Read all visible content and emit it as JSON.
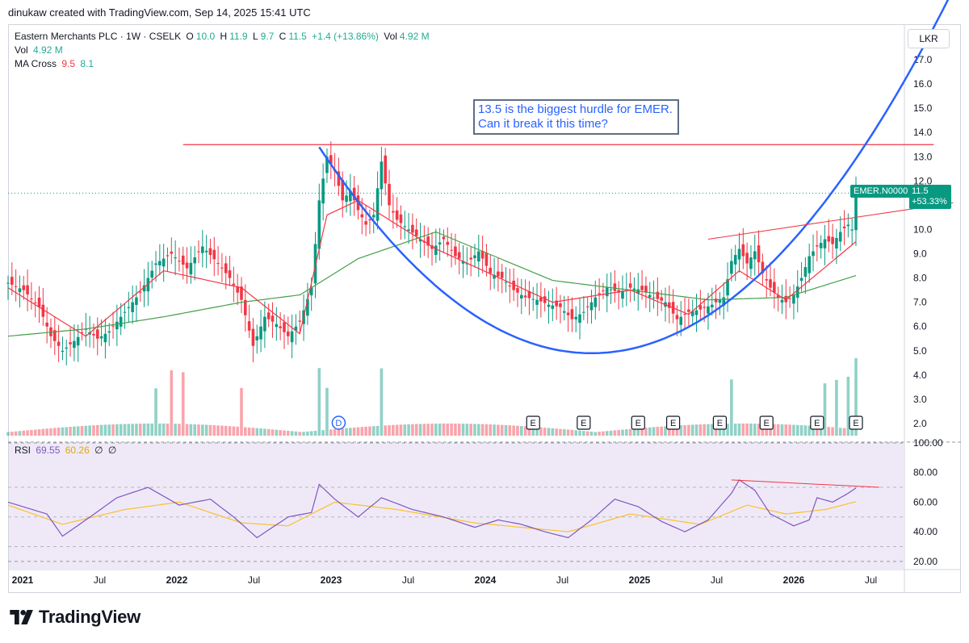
{
  "header": {
    "credit": "dinukaw created with TradingView.com, Sep 14, 2025 15:41 UTC"
  },
  "legend": {
    "symbol": "Eastern Merchants PLC · 1W · CSELK",
    "o_label": "O",
    "o_value": "10.0",
    "h_label": "H",
    "h_value": "11.9",
    "l_label": "L",
    "l_value": "9.7",
    "c_label": "C",
    "c_value": "11.5",
    "change": "+1.4 (+13.86%)",
    "vol_label": "Vol",
    "vol_value": "4.92 M",
    "vol_row_label": "Vol",
    "vol_row_value": "4.92 M",
    "ma_label": "MA Cross",
    "ma_fast": "9.5",
    "ma_slow": "8.1",
    "rsi_label": "RSI",
    "rsi_value": "69.55",
    "rsi_ma": "60.26",
    "rsi_extra1": "∅",
    "rsi_extra2": "∅"
  },
  "currency": "LKR",
  "annotation": {
    "line1": "13.5 is the biggest hurdle for EMER.",
    "line2": "Can it break it this time?"
  },
  "price_tag": {
    "symbol": "EMER.N0000",
    "price": "11.5",
    "change": "+53.33%"
  },
  "brand": {
    "name": "TradingView"
  },
  "colors": {
    "up": "#089981",
    "down": "#f23645",
    "ma_fast": "#f23645",
    "ma_slow": "#43a047",
    "cup": "#2962ff",
    "resistance": "#f23645",
    "rsi": "#7e57c2",
    "rsi_ma": "#fbc02d",
    "rsi_bg": "#ede7f6"
  },
  "chart_data": {
    "type": "candlestick",
    "title": "Eastern Merchants PLC · 1W · CSELK",
    "currency": "LKR",
    "price_axis": {
      "ticks": [
        "17.0",
        "16.0",
        "15.0",
        "14.0",
        "13.0",
        "12.0",
        "11.0",
        "10.0",
        "9.0",
        "8.0",
        "7.0",
        "6.0",
        "5.0",
        "4.0",
        "3.0",
        "2.0"
      ],
      "min": 1.5,
      "max": 17.6
    },
    "time_axis": {
      "labels": [
        "2021",
        "Jul",
        "2022",
        "Jul",
        "2023",
        "Jul",
        "2024",
        "Jul",
        "2025",
        "Jul",
        "2026",
        "Jul"
      ]
    },
    "rsi_axis": {
      "ticks": [
        "100.00",
        "80.00",
        "60.00",
        "40.00",
        "20.00"
      ],
      "min": 15,
      "max": 100
    },
    "last_close": 11.5,
    "resistance_level": 13.5,
    "price_path": [
      [
        0,
        7.8
      ],
      [
        4,
        7.5
      ],
      [
        8,
        6.8
      ],
      [
        11,
        5.6
      ],
      [
        14,
        5.0
      ],
      [
        17,
        5.4
      ],
      [
        20,
        5.9
      ],
      [
        23,
        5.5
      ],
      [
        26,
        5.8
      ],
      [
        30,
        6.6
      ],
      [
        34,
        7.4
      ],
      [
        38,
        8.6
      ],
      [
        42,
        9.0
      ],
      [
        46,
        8.4
      ],
      [
        50,
        9.3
      ],
      [
        54,
        8.6
      ],
      [
        57,
        8.0
      ],
      [
        60,
        7.1
      ],
      [
        63,
        5.2
      ],
      [
        66,
        6.4
      ],
      [
        69,
        6.1
      ],
      [
        72,
        5.6
      ],
      [
        75,
        6.2
      ],
      [
        78,
        7.6
      ],
      [
        80,
        11.2
      ],
      [
        82,
        13.0
      ],
      [
        84,
        12.4
      ],
      [
        86,
        11.2
      ],
      [
        88,
        11.6
      ],
      [
        90,
        10.8
      ],
      [
        92,
        10.2
      ],
      [
        94,
        10.6
      ],
      [
        96,
        12.8
      ],
      [
        98,
        11.0
      ],
      [
        100,
        10.4
      ],
      [
        103,
        10.0
      ],
      [
        106,
        9.6
      ],
      [
        109,
        9.2
      ],
      [
        112,
        9.6
      ],
      [
        115,
        8.9
      ],
      [
        118,
        8.6
      ],
      [
        121,
        9.1
      ],
      [
        124,
        8.2
      ],
      [
        127,
        8.0
      ],
      [
        130,
        7.5
      ],
      [
        133,
        7.2
      ],
      [
        136,
        7.1
      ],
      [
        139,
        6.9
      ],
      [
        142,
        6.8
      ],
      [
        145,
        6.3
      ],
      [
        148,
        6.6
      ],
      [
        151,
        7.2
      ],
      [
        154,
        7.6
      ],
      [
        157,
        7.4
      ],
      [
        160,
        7.6
      ],
      [
        163,
        7.5
      ],
      [
        166,
        7.2
      ],
      [
        169,
        7.0
      ],
      [
        172,
        6.3
      ],
      [
        175,
        6.6
      ],
      [
        178,
        6.7
      ],
      [
        181,
        6.9
      ],
      [
        184,
        7.2
      ],
      [
        186,
        8.7
      ],
      [
        188,
        9.2
      ],
      [
        190,
        8.6
      ],
      [
        192,
        9.1
      ],
      [
        194,
        8.2
      ],
      [
        196,
        7.6
      ],
      [
        198,
        7.2
      ],
      [
        200,
        7.0
      ],
      [
        202,
        7.3
      ],
      [
        204,
        8.0
      ],
      [
        206,
        8.9
      ],
      [
        208,
        9.3
      ],
      [
        210,
        9.6
      ],
      [
        212,
        9.4
      ],
      [
        214,
        9.9
      ],
      [
        216,
        10.2
      ],
      [
        217,
        10.0
      ],
      [
        218,
        11.5
      ]
    ],
    "ma_fast_path": [
      [
        0,
        7.6
      ],
      [
        20,
        5.6
      ],
      [
        40,
        8.3
      ],
      [
        60,
        7.6
      ],
      [
        75,
        5.7
      ],
      [
        82,
        10.6
      ],
      [
        90,
        11.2
      ],
      [
        110,
        9.2
      ],
      [
        140,
        7.0
      ],
      [
        160,
        7.5
      ],
      [
        175,
        6.5
      ],
      [
        188,
        8.3
      ],
      [
        200,
        7.1
      ],
      [
        218,
        9.5
      ]
    ],
    "ma_slow_path": [
      [
        0,
        5.6
      ],
      [
        20,
        5.9
      ],
      [
        40,
        6.4
      ],
      [
        60,
        7.0
      ],
      [
        75,
        7.3
      ],
      [
        90,
        8.8
      ],
      [
        110,
        9.9
      ],
      [
        140,
        7.9
      ],
      [
        160,
        7.5
      ],
      [
        180,
        7.1
      ],
      [
        200,
        7.2
      ],
      [
        218,
        8.1
      ]
    ],
    "rsi_path": [
      [
        0,
        60
      ],
      [
        10,
        52
      ],
      [
        14,
        37
      ],
      [
        20,
        48
      ],
      [
        28,
        63
      ],
      [
        36,
        70
      ],
      [
        44,
        58
      ],
      [
        52,
        62
      ],
      [
        58,
        50
      ],
      [
        64,
        36
      ],
      [
        72,
        50
      ],
      [
        78,
        53
      ],
      [
        80,
        72
      ],
      [
        84,
        62
      ],
      [
        90,
        50
      ],
      [
        96,
        63
      ],
      [
        104,
        55
      ],
      [
        112,
        50
      ],
      [
        120,
        43
      ],
      [
        126,
        48
      ],
      [
        132,
        45
      ],
      [
        138,
        40
      ],
      [
        144,
        36
      ],
      [
        150,
        48
      ],
      [
        156,
        62
      ],
      [
        162,
        57
      ],
      [
        168,
        47
      ],
      [
        174,
        40
      ],
      [
        180,
        48
      ],
      [
        186,
        66
      ],
      [
        188,
        75
      ],
      [
        192,
        68
      ],
      [
        196,
        52
      ],
      [
        202,
        44
      ],
      [
        206,
        48
      ],
      [
        208,
        63
      ],
      [
        212,
        60
      ],
      [
        216,
        66
      ],
      [
        218,
        69.55
      ]
    ],
    "rsi_ma_path": [
      [
        0,
        58
      ],
      [
        14,
        45
      ],
      [
        30,
        55
      ],
      [
        44,
        60
      ],
      [
        60,
        46
      ],
      [
        72,
        44
      ],
      [
        84,
        60
      ],
      [
        100,
        55
      ],
      [
        120,
        46
      ],
      [
        144,
        40
      ],
      [
        160,
        52
      ],
      [
        178,
        45
      ],
      [
        190,
        58
      ],
      [
        200,
        52
      ],
      [
        210,
        55
      ],
      [
        218,
        60.26
      ]
    ],
    "earnings_markers": [
      "E",
      "E",
      "E",
      "E",
      "E",
      "E",
      "E",
      "E"
    ],
    "dividend_marker": "D",
    "rsi_trendline": [
      75,
      70
    ]
  }
}
